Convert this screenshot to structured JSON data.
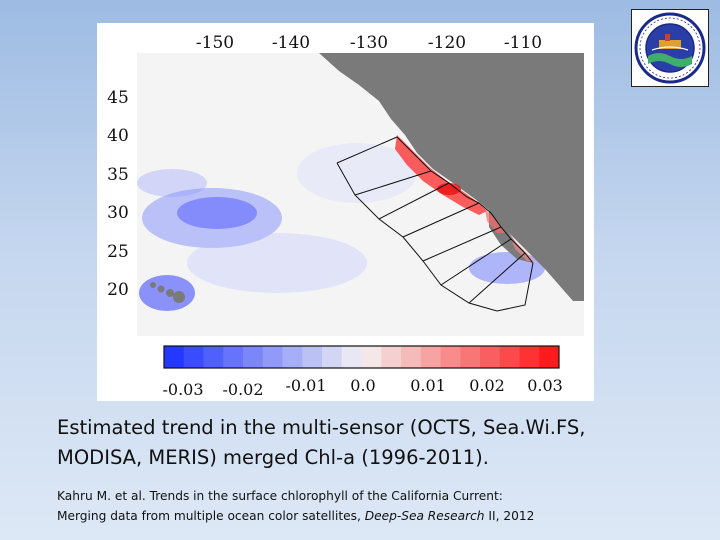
{
  "map": {
    "lon_ticks": [
      "-150",
      "-140",
      "-130",
      "-120",
      "-110"
    ],
    "lat_ticks": [
      "45",
      "40",
      "35",
      "30",
      "25",
      "20"
    ]
  },
  "colorbar": {
    "min": -0.03,
    "max": 0.03,
    "neg_color": "#1a2fff",
    "zero_color": "#f2f2f2",
    "pos_color": "#ff1010",
    "ticks": [
      "-0.03",
      "-0.02",
      "-0.01",
      "0.0",
      "0.01",
      "0.02",
      "0.03"
    ]
  },
  "colors": {
    "land": "#7a7a7a",
    "slide_bg_top": "#9dbbe3",
    "slide_bg_bottom": "#dde8f6"
  },
  "caption": {
    "line1": "Estimated trend in the multi-sensor (OCTS, Sea.Wi.FS,",
    "line2": "MODISA, MERIS) merged Chl-a (1996-2011)."
  },
  "citation": {
    "text1": "Kahru M. et al. Trends in the surface chlorophyll of the California Current:",
    "text2": "Merging data from multiple ocean color satellites, ",
    "journal": "Deep-Sea Research",
    "text3": " II, 2012"
  },
  "logo": {
    "icon": "institution-seal-icon"
  }
}
